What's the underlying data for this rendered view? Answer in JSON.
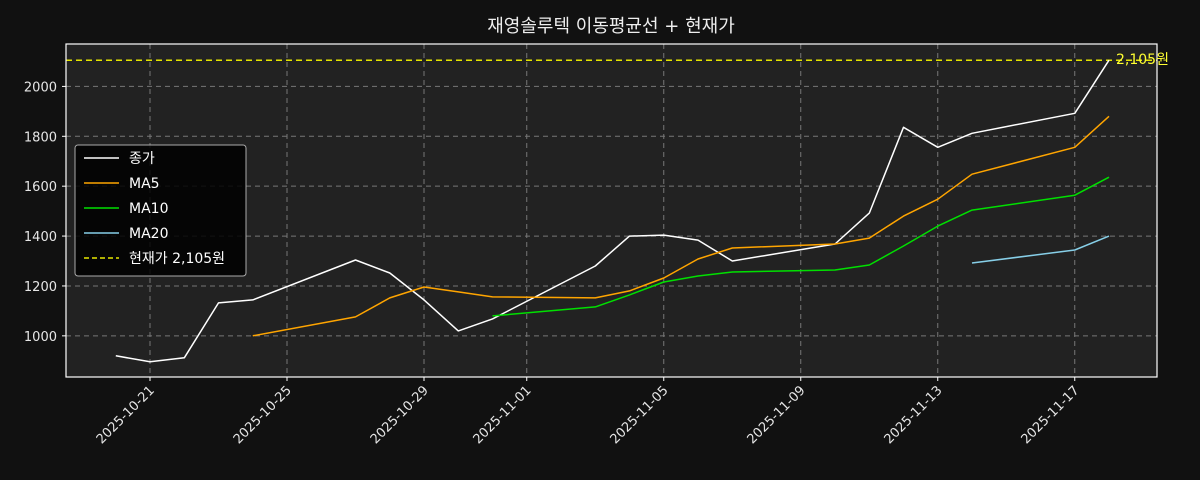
{
  "chart_data": {
    "type": "line",
    "title": "재영솔루텍 이동평균선 + 현재가",
    "xlabel": "",
    "ylabel": "",
    "ylim": [
      835,
      2170
    ],
    "grid": true,
    "legend_position": "center left",
    "x_ticks": [
      "2025-10-21",
      "2025-10-25",
      "2025-10-29",
      "2025-11-01",
      "2025-11-05",
      "2025-11-09",
      "2025-11-13",
      "2025-11-17"
    ],
    "y_ticks": [
      1000,
      1200,
      1400,
      1600,
      1800,
      2000
    ],
    "x": [
      "2025-10-20",
      "2025-10-21",
      "2025-10-22",
      "2025-10-23",
      "2025-10-24",
      "2025-10-27",
      "2025-10-28",
      "2025-10-29",
      "2025-10-30",
      "2025-10-31",
      "2025-11-03",
      "2025-11-04",
      "2025-11-05",
      "2025-11-06",
      "2025-11-07",
      "2025-11-10",
      "2025-11-11",
      "2025-11-12",
      "2025-11-13",
      "2025-11-14",
      "2025-11-17",
      "2025-11-18"
    ],
    "series": [
      {
        "name": "종가",
        "color": "#ffffff",
        "style": "solid",
        "values": [
          920,
          896,
          912,
          1132,
          1144,
          1304,
          1252,
          1144,
          1020,
          1068,
          1280,
          1400,
          1404,
          1384,
          1300,
          1368,
          1492,
          1836,
          1756,
          1812,
          1892,
          2105
        ]
      },
      {
        "name": "MA5",
        "color": "#ffa500",
        "style": "solid",
        "values": [
          null,
          null,
          null,
          null,
          1000,
          1076,
          1152,
          1196,
          1176,
          1156,
          1152,
          1180,
          1232,
          1308,
          1352,
          1368,
          1392,
          1480,
          1548,
          1648,
          1756,
          1880
        ]
      },
      {
        "name": "MA10",
        "color": "#00e000",
        "style": "solid",
        "values": [
          null,
          null,
          null,
          null,
          null,
          null,
          null,
          null,
          null,
          1080,
          1116,
          1164,
          1216,
          1240,
          1256,
          1264,
          1284,
          1360,
          1440,
          1504,
          1564,
          1636
        ]
      },
      {
        "name": "MA20",
        "color": "#87cfe8",
        "style": "solid",
        "values": [
          null,
          null,
          null,
          null,
          null,
          null,
          null,
          null,
          null,
          null,
          null,
          null,
          null,
          null,
          null,
          null,
          null,
          null,
          null,
          1292,
          1344,
          1400
        ]
      },
      {
        "name": "현재가 2,105원",
        "color": "#e6e600",
        "style": "dashed",
        "hline": 2105
      }
    ],
    "annotations": [
      {
        "text": "2,105원",
        "x": "2025-11-18",
        "y": 2105,
        "color": "#ffff33"
      }
    ]
  },
  "legend": {
    "items": [
      {
        "label": "종가",
        "color": "#ffffff",
        "dashed": false
      },
      {
        "label": "MA5",
        "color": "#ffa500",
        "dashed": false
      },
      {
        "label": "MA10",
        "color": "#00e000",
        "dashed": false
      },
      {
        "label": "MA20",
        "color": "#87cfe8",
        "dashed": false
      },
      {
        "label": "현재가 2,105원",
        "color": "#e6e600",
        "dashed": true
      }
    ]
  },
  "colors": {
    "background": "#111111",
    "plot_background": "#222222",
    "grid": "#777777",
    "axes": "#ffffff"
  }
}
